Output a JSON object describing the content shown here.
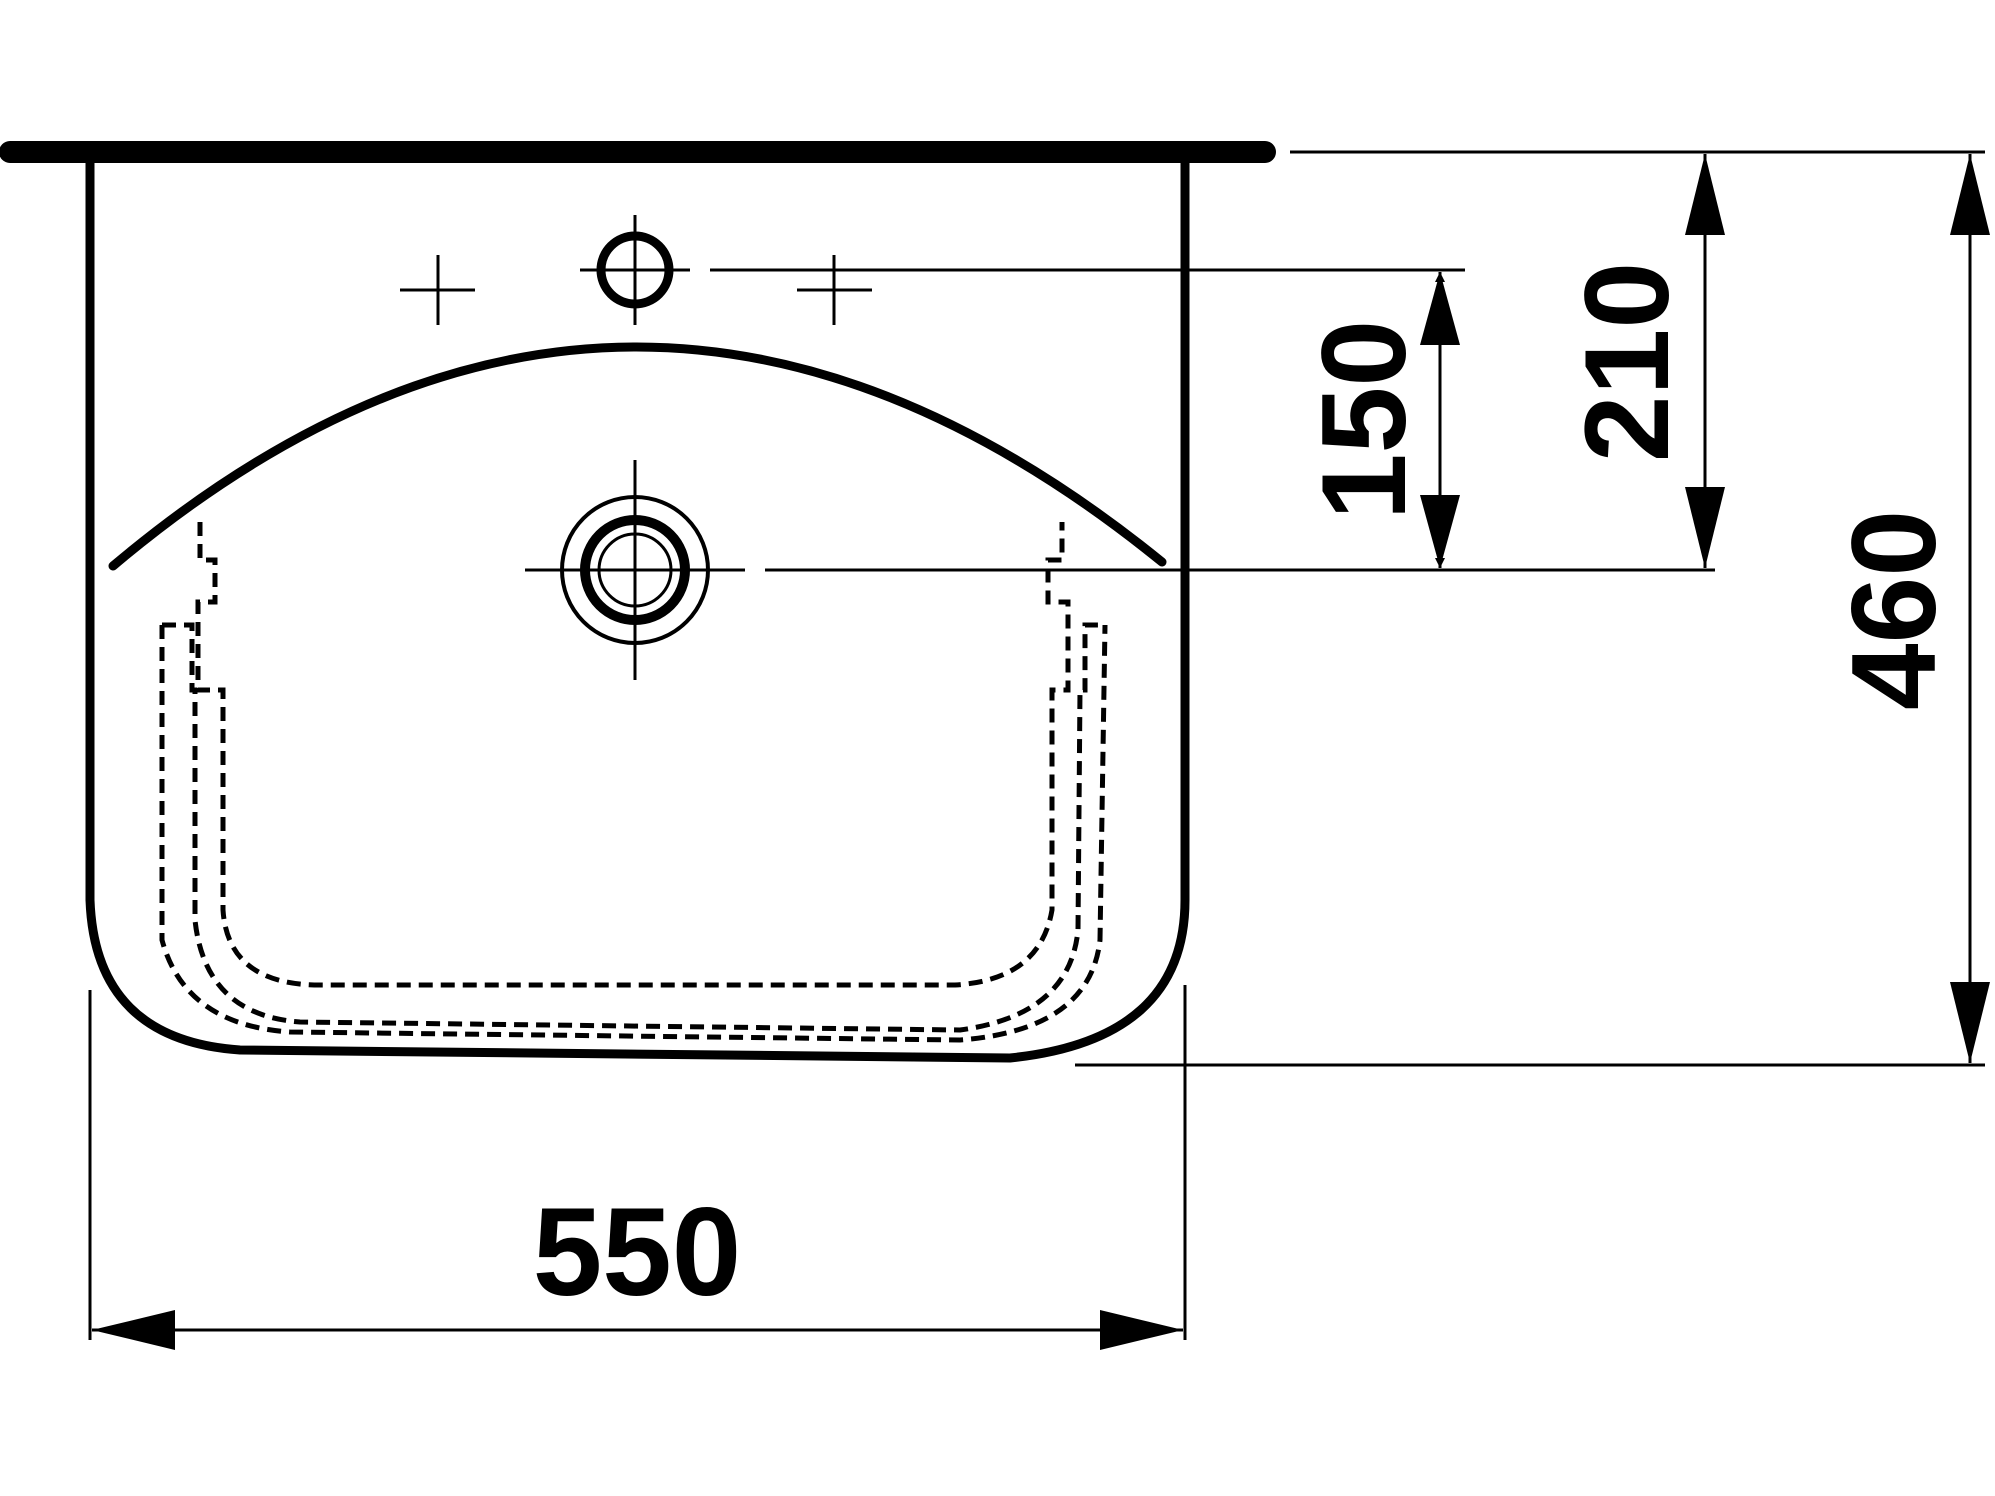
{
  "drawing": {
    "subject": "washbasin",
    "units": "mm",
    "line_color": "#000000",
    "background": "#ffffff",
    "dimensions": {
      "width": {
        "value": 550,
        "label": "550"
      },
      "depth": {
        "value": 460,
        "label": "460"
      },
      "tap_hole_to_back": {
        "value": 210,
        "label": "210"
      },
      "waste_to_tap_hole": {
        "value": 150,
        "label": "150"
      }
    },
    "features": {
      "tap_hole": "tap-hole",
      "waste_outlet": "waste-outlet",
      "optional_tap_holes": [
        "optional-tap-hole-left",
        "optional-tap-hole-right"
      ],
      "hidden_bowl_outline": "dashed"
    }
  }
}
